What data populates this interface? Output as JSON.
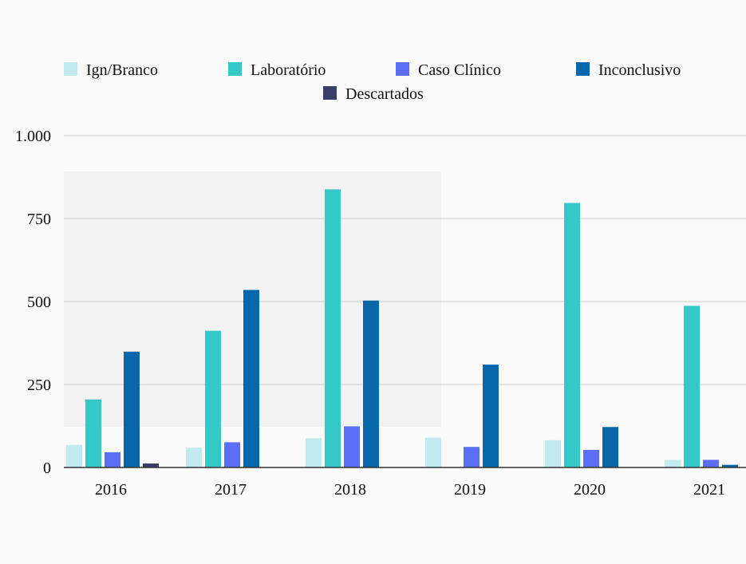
{
  "chart_data": {
    "type": "bar",
    "categories": [
      "2016",
      "2017",
      "2018",
      "2019",
      "2020",
      "2021"
    ],
    "series": [
      {
        "name": "Ign/Branco",
        "color": "#c2ebf1",
        "values": [
          68,
          60,
          88,
          90,
          82,
          23
        ]
      },
      {
        "name": "Laboratório",
        "color": "#35c8c8",
        "values": [
          205,
          412,
          838,
          0,
          797,
          487
        ]
      },
      {
        "name": "Caso Clínico",
        "color": "#5a6ff5",
        "values": [
          46,
          76,
          124,
          62,
          53,
          23
        ]
      },
      {
        "name": "Inconclusivo",
        "color": "#0767aa",
        "values": [
          349,
          535,
          503,
          310,
          122,
          8
        ]
      },
      {
        "name": "Descartados",
        "color": "#3b3d6a",
        "values": [
          12,
          0,
          0,
          0,
          0,
          0
        ]
      }
    ],
    "yticks": [
      {
        "value": 0,
        "label": "0"
      },
      {
        "value": 250,
        "label": "250"
      },
      {
        "value": 500,
        "label": "500"
      },
      {
        "value": 750,
        "label": "750"
      },
      {
        "value": 1000,
        "label": "1.000"
      }
    ],
    "ylim": [
      0,
      1000
    ],
    "grid": true,
    "legend_position": "top"
  }
}
